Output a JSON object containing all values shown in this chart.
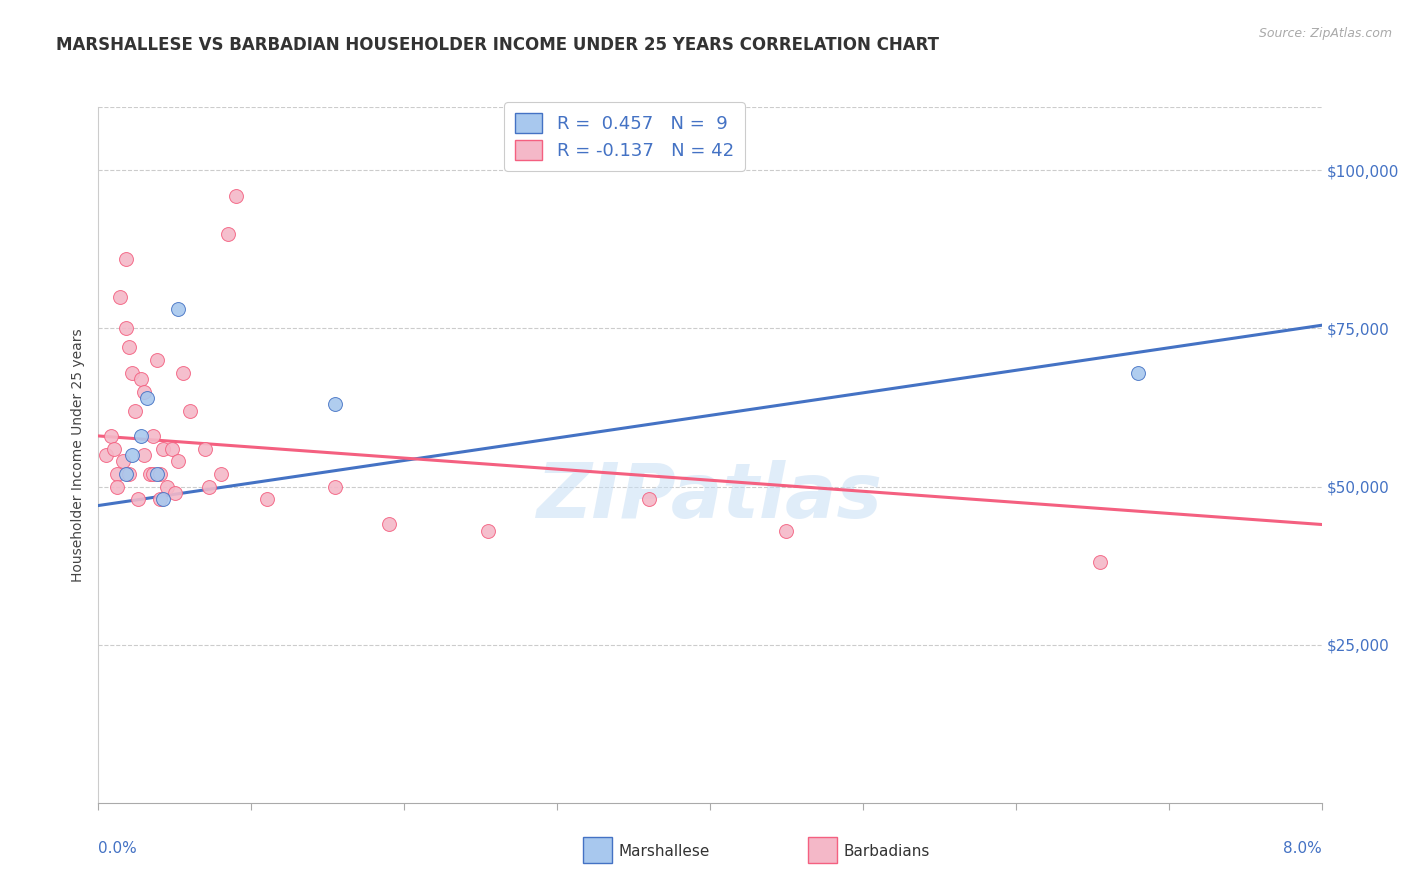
{
  "title": "MARSHALLESE VS BARBADIAN HOUSEHOLDER INCOME UNDER 25 YEARS CORRELATION CHART",
  "source": "Source: ZipAtlas.com",
  "ylabel": "Householder Income Under 25 years",
  "xmin": 0.0,
  "xmax": 8.0,
  "ymin": 0,
  "ymax": 110000,
  "yticks": [
    25000,
    50000,
    75000,
    100000
  ],
  "ytick_labels": [
    "$25,000",
    "$50,000",
    "$75,000",
    "$100,000"
  ],
  "marshallese_color": "#A8C8EE",
  "barbadian_color": "#F4B8C8",
  "marshallese_line_color": "#4472C4",
  "barbadian_line_color": "#F46080",
  "marshallese_x": [
    0.18,
    0.22,
    0.28,
    0.32,
    0.38,
    0.42,
    0.52,
    1.55,
    6.8
  ],
  "marshallese_y": [
    52000,
    55000,
    58000,
    64000,
    52000,
    48000,
    78000,
    63000,
    68000
  ],
  "barbadian_x": [
    0.05,
    0.08,
    0.1,
    0.12,
    0.12,
    0.14,
    0.16,
    0.18,
    0.18,
    0.2,
    0.2,
    0.22,
    0.24,
    0.26,
    0.28,
    0.3,
    0.3,
    0.34,
    0.36,
    0.36,
    0.38,
    0.4,
    0.4,
    0.42,
    0.45,
    0.48,
    0.5,
    0.52,
    0.55,
    0.6,
    0.7,
    0.72,
    0.8,
    0.85,
    0.9,
    1.1,
    1.55,
    2.55,
    3.6,
    4.5,
    6.55,
    1.9
  ],
  "barbadian_y": [
    55000,
    58000,
    56000,
    52000,
    50000,
    80000,
    54000,
    86000,
    75000,
    72000,
    52000,
    68000,
    62000,
    48000,
    67000,
    65000,
    55000,
    52000,
    58000,
    52000,
    70000,
    52000,
    48000,
    56000,
    50000,
    56000,
    49000,
    54000,
    68000,
    62000,
    56000,
    50000,
    52000,
    90000,
    96000,
    48000,
    50000,
    43000,
    48000,
    43000,
    38000,
    44000
  ],
  "watermark": "ZIPatlas",
  "background_color": "#FFFFFF",
  "marsh_line_x0": 0.0,
  "marsh_line_x1": 8.0,
  "marsh_line_y0": 47000,
  "marsh_line_y1": 75500,
  "barb_line_x0": 0.0,
  "barb_line_x1": 8.0,
  "barb_line_y0": 58000,
  "barb_line_y1": 44000
}
